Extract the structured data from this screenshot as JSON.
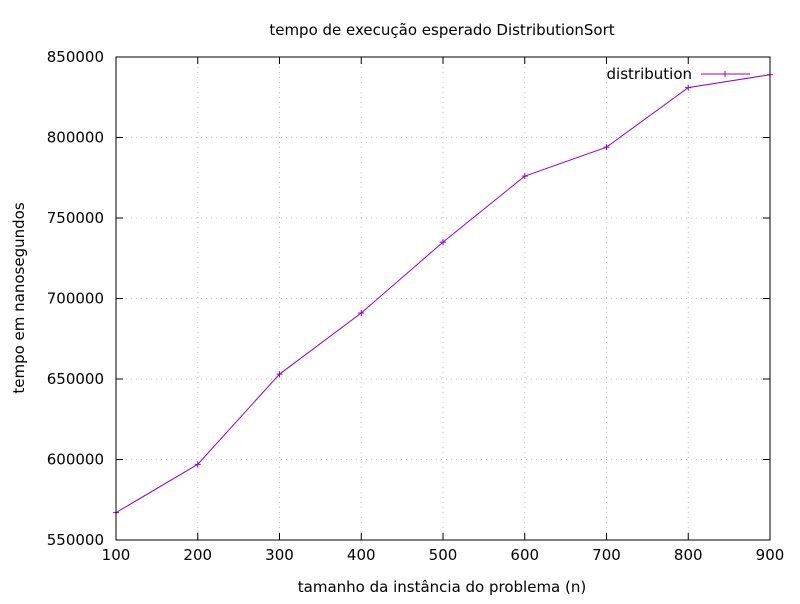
{
  "chart_data": {
    "type": "line",
    "title": "tempo de execução esperado DistributionSort",
    "xlabel": "tamanho da instância do problema (n)",
    "ylabel": "tempo em nanosegundos",
    "xlim": [
      100,
      900
    ],
    "ylim": [
      550000,
      850000
    ],
    "xticks": [
      100,
      200,
      300,
      400,
      500,
      600,
      700,
      800,
      900
    ],
    "yticks": [
      550000,
      600000,
      650000,
      700000,
      750000,
      800000,
      850000
    ],
    "grid": true,
    "legend_position": "top-right",
    "series": [
      {
        "name": "distribution",
        "color": "#9400d3",
        "marker": "plus",
        "x": [
          100,
          200,
          300,
          400,
          500,
          600,
          700,
          800,
          900
        ],
        "y": [
          567000,
          597000,
          653000,
          691000,
          735000,
          776000,
          794000,
          831000,
          839000
        ]
      }
    ]
  }
}
